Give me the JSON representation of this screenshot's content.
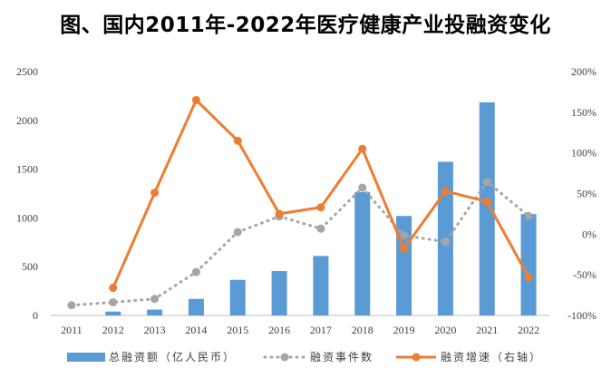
{
  "chart_data": {
    "type": "bar",
    "title": "图、国内2011年-2022年医疗健康产业投融资变化",
    "categories": [
      "2011",
      "2012",
      "2013",
      "2014",
      "2015",
      "2016",
      "2017",
      "2018",
      "2019",
      "2020",
      "2021",
      "2022"
    ],
    "ylim": [
      0,
      2500
    ],
    "y_ticks": [
      "0",
      "500",
      "1000",
      "1500",
      "2000",
      "2500"
    ],
    "y2lim": [
      -100,
      200
    ],
    "y2_ticks": [
      "-100%",
      "-50%",
      "0%",
      "50%",
      "100%",
      "150%",
      "200%"
    ],
    "grid": false,
    "legend_position": "bottom",
    "series": [
      {
        "name": "总融资额（亿人民币）",
        "type": "bar",
        "axis": "left",
        "color": "#5b9bd5",
        "values": [
          null,
          40,
          60,
          170,
          365,
          455,
          610,
          1265,
          1020,
          1575,
          2185,
          1040
        ]
      },
      {
        "name": "融资事件数",
        "type": "line",
        "axis": "left",
        "style": "dotted",
        "color": "#a5a5a5",
        "values": [
          105,
          135,
          170,
          445,
          855,
          1015,
          890,
          1310,
          820,
          755,
          1370,
          1020
        ]
      },
      {
        "name": "融资增速（右轴）",
        "type": "line",
        "axis": "right",
        "color": "#ed7d31",
        "values": [
          null,
          -66,
          51,
          165,
          115,
          25,
          33,
          105,
          -18,
          53,
          40,
          -53
        ]
      }
    ]
  }
}
